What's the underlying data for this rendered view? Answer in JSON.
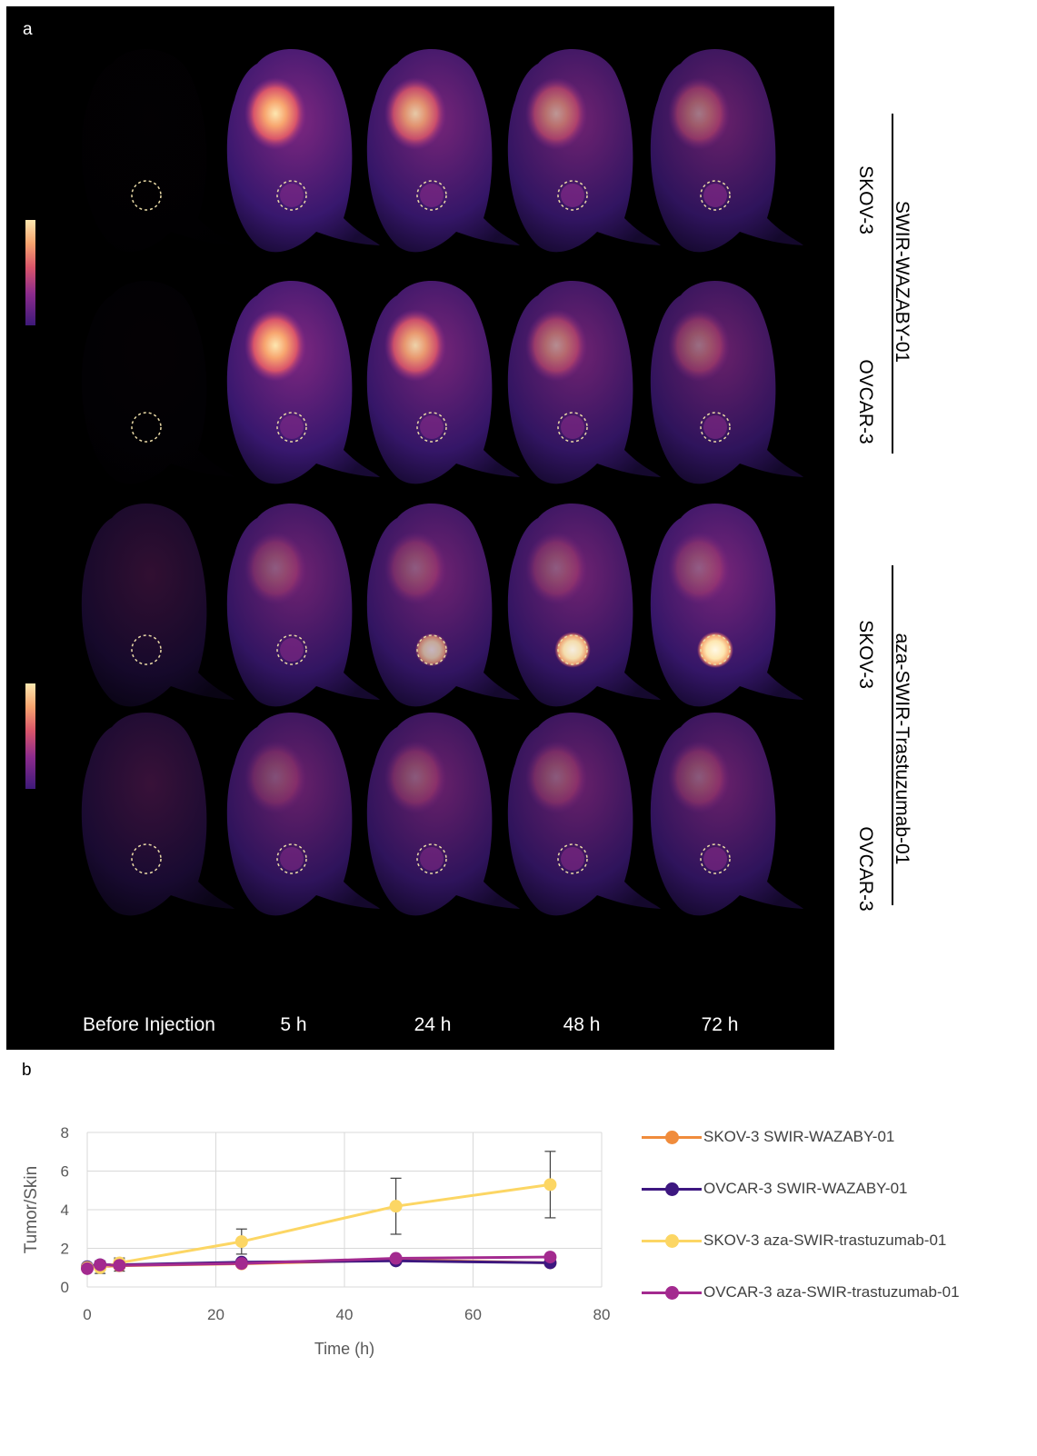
{
  "figure": {
    "panel_a_label": "a",
    "panel_b_label": "b"
  },
  "panel_a": {
    "timepoints": [
      "Before Injection",
      "5 h",
      "24 h",
      "48 h",
      "72 h"
    ],
    "rows": [
      {
        "cell_line": "SKOV-3",
        "probe": "SWIR-WAZABY-01",
        "tumor_intensity": [
          0.0,
          0.3,
          0.35,
          0.4,
          0.4
        ]
      },
      {
        "cell_line": "OVCAR-3",
        "probe": "SWIR-WAZABY-01",
        "tumor_intensity": [
          0.0,
          0.3,
          0.35,
          0.35,
          0.35
        ]
      },
      {
        "cell_line": "SKOV-3",
        "probe": "aza-SWIR-Trastuzumab-01",
        "tumor_intensity": [
          0.1,
          0.35,
          0.7,
          0.95,
          1.0
        ]
      },
      {
        "cell_line": "OVCAR-3",
        "probe": "aza-SWIR-Trastuzumab-01",
        "tumor_intensity": [
          0.1,
          0.3,
          0.3,
          0.35,
          0.35
        ]
      }
    ],
    "group_labels": [
      "SWIR-WAZABY-01",
      "aza-SWIR-Trastuzumab-01"
    ],
    "colormap": [
      "#3e1a7a",
      "#8c2b8d",
      "#d9556a",
      "#f7a56f",
      "#fde7b0"
    ]
  },
  "chart_data": {
    "type": "line",
    "xlabel": "Time (h)",
    "ylabel": "Tumor/Skin",
    "xlim": [
      0,
      80
    ],
    "ylim": [
      0,
      8
    ],
    "xticks": [
      0,
      20,
      40,
      60,
      80
    ],
    "yticks": [
      0,
      2,
      4,
      6,
      8
    ],
    "grid": true,
    "legend_position": "right",
    "series": [
      {
        "name": "SKOV-3 SWIR-WAZABY-01",
        "color": "#f08c3c",
        "x": [
          0,
          2,
          5,
          24,
          48,
          72
        ],
        "y": [
          1.0,
          1.05,
          1.1,
          1.2,
          1.4,
          1.25
        ],
        "err": [
          0.1,
          0.1,
          0.1,
          0.1,
          0.1,
          0.1
        ]
      },
      {
        "name": "OVCAR-3 SWIR-WAZABY-01",
        "color": "#3d1780",
        "x": [
          0,
          2,
          5,
          24,
          48,
          72
        ],
        "y": [
          1.05,
          1.15,
          1.15,
          1.28,
          1.35,
          1.25
        ],
        "err": [
          0.1,
          0.1,
          0.1,
          0.1,
          0.1,
          0.1
        ]
      },
      {
        "name": "SKOV-3 aza-SWIR-trastuzumab-01",
        "color": "#fcd664",
        "x": [
          0,
          2,
          5,
          24,
          48,
          72
        ],
        "y": [
          1.0,
          1.0,
          1.25,
          2.35,
          4.18,
          5.3
        ],
        "err": [
          0.1,
          0.3,
          0.25,
          0.65,
          1.45,
          1.72
        ]
      },
      {
        "name": "OVCAR-3 aza-SWIR-trastuzumab-01",
        "color": "#a32a8f",
        "x": [
          0,
          2,
          5,
          24,
          48,
          72
        ],
        "y": [
          0.95,
          1.15,
          1.12,
          1.22,
          1.48,
          1.55
        ],
        "err": [
          0.1,
          0.2,
          0.3,
          0.1,
          0.1,
          0.1
        ]
      }
    ]
  }
}
